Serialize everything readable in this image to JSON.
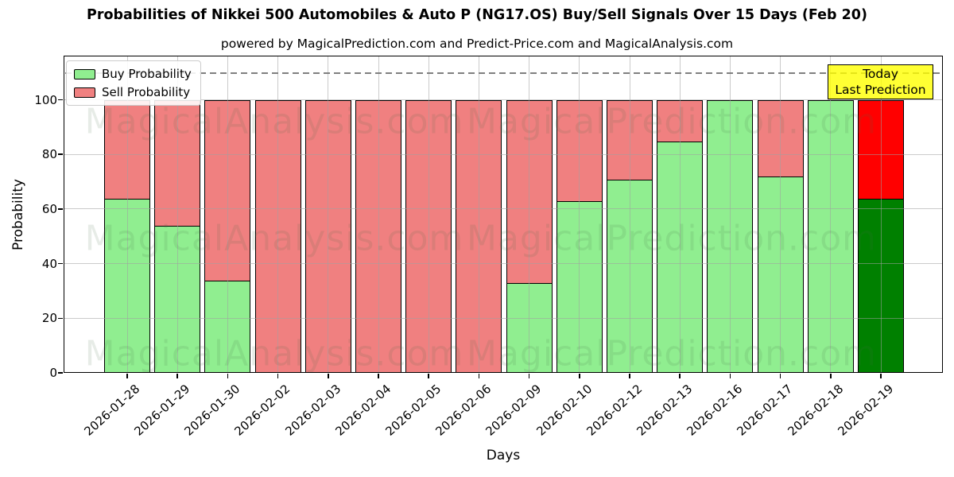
{
  "title": "Probabilities of Nikkei 500 Automobiles & Auto P (NG17.OS) Buy/Sell Signals Over 15 Days (Feb 20)",
  "subtitle": "powered by MagicalPrediction.com and Predict-Price.com and MagicalAnalysis.com",
  "legend": {
    "buy_label": "Buy Probability",
    "sell_label": "Sell Probability"
  },
  "annotation_box": {
    "line1": "Today",
    "line2": "Last Prediction",
    "bg_color": "#ffff00"
  },
  "axes": {
    "xlabel": "Days",
    "ylabel": "Probability",
    "yticks": [
      0,
      20,
      40,
      60,
      80,
      100
    ],
    "ylim": [
      0,
      116
    ],
    "dashed_line_y": 110,
    "grid": true
  },
  "watermarks": [
    "MagicalAnalysis.com",
    "MagicalPrediction.com"
  ],
  "colors": {
    "buy": "#90EE90",
    "sell": "#F08080",
    "today_buy": "#008000",
    "today_sell": "#FF0000",
    "bar_edge": "#000000"
  },
  "chart_data": {
    "type": "bar",
    "stacked": true,
    "title": "Probabilities of Nikkei 500 Automobiles & Auto P (NG17.OS) Buy/Sell Signals Over 15 Days (Feb 20)",
    "xlabel": "Days",
    "ylabel": "Probability",
    "ylim": [
      0,
      116
    ],
    "legend_position": "upper left",
    "categories": [
      "2026-01-28",
      "2026-01-29",
      "2026-01-30",
      "2026-02-02",
      "2026-02-03",
      "2026-02-04",
      "2026-02-05",
      "2026-02-06",
      "2026-02-09",
      "2026-02-10",
      "2026-02-12",
      "2026-02-13",
      "2026-02-16",
      "2026-02-17",
      "2026-02-18",
      "2026-02-19"
    ],
    "series": [
      {
        "name": "Buy Probability",
        "color": "#90EE90",
        "values": [
          64,
          54,
          34,
          0,
          0,
          0,
          0,
          0,
          33,
          63,
          71,
          85,
          100,
          72,
          100,
          64
        ]
      },
      {
        "name": "Sell Probability",
        "color": "#F08080",
        "values": [
          36,
          46,
          66,
          100,
          100,
          100,
          100,
          100,
          67,
          37,
          29,
          15,
          0,
          28,
          0,
          36
        ]
      }
    ],
    "today_index": 15,
    "today_annotation": "Today Last Prediction"
  }
}
